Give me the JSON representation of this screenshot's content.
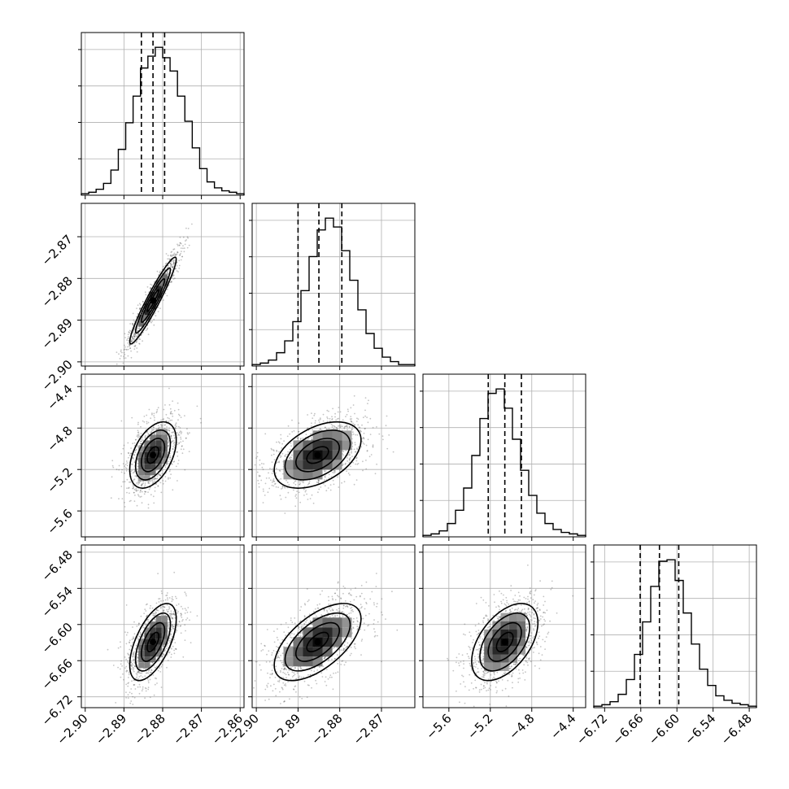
{
  "chart_data": {
    "type": "corner",
    "title": "",
    "parameters": [
      {
        "name": "",
        "axis_ticks": [
          "-2.90",
          "-2.89",
          "-2.88",
          "-2.87",
          "-2.86"
        ],
        "tick_values": [
          -2.9,
          -2.89,
          -2.88,
          -2.87,
          -2.86
        ],
        "range": [
          -2.901,
          -2.859
        ],
        "quantiles": [
          -2.8855,
          -2.8825,
          -2.8795
        ],
        "peak": -2.8825,
        "sigma": 0.003
      },
      {
        "name": "",
        "axis_ticks": [
          "-2.90",
          "-2.89",
          "-2.88",
          "-2.87"
        ],
        "tick_values": [
          -2.9,
          -2.89,
          -2.88,
          -2.87
        ],
        "range": [
          -2.901,
          -2.862
        ],
        "quantiles": [
          -2.89,
          -2.885,
          -2.8795
        ],
        "peak": -2.8853,
        "sigma": 0.0052
      },
      {
        "name": "",
        "axis_ticks": [
          "-5.6",
          "-5.2",
          "-4.8",
          "-4.4"
        ],
        "tick_values": [
          -5.6,
          -5.2,
          -4.8,
          -4.4
        ],
        "range": [
          -5.85,
          -4.28
        ],
        "quantiles": [
          -5.22,
          -5.06,
          -4.9
        ],
        "peak": -5.06,
        "sigma": 0.16
      },
      {
        "name": "",
        "axis_ticks": [
          "-6.72",
          "-6.66",
          "-6.60",
          "-6.54",
          "-6.48"
        ],
        "tick_values": [
          -6.72,
          -6.66,
          -6.6,
          -6.54,
          -6.48
        ],
        "range": [
          -6.738,
          -6.468
        ],
        "quantiles": [
          -6.661,
          -6.629,
          -6.597
        ],
        "peak": -6.629,
        "sigma": 0.032
      }
    ],
    "correlations": [
      [
        1,
        0.95,
        0.45,
        0.6
      ],
      [
        0.95,
        1,
        0.45,
        0.6
      ],
      [
        0.45,
        0.45,
        1,
        0.5
      ],
      [
        0.6,
        0.6,
        0.5,
        1
      ]
    ],
    "histograms": [
      [
        0.01,
        0.02,
        0.04,
        0.08,
        0.17,
        0.31,
        0.49,
        0.67,
        0.86,
        0.94,
        1.0,
        0.93,
        0.84,
        0.67,
        0.5,
        0.32,
        0.18,
        0.09,
        0.05,
        0.03,
        0.02,
        0.01
      ],
      [
        0.01,
        0.02,
        0.04,
        0.09,
        0.17,
        0.3,
        0.51,
        0.74,
        0.92,
        1.0,
        0.94,
        0.78,
        0.58,
        0.38,
        0.22,
        0.12,
        0.06,
        0.03,
        0.01,
        0.01
      ],
      [
        0.01,
        0.02,
        0.04,
        0.09,
        0.18,
        0.33,
        0.55,
        0.8,
        0.97,
        1.0,
        0.87,
        0.66,
        0.45,
        0.28,
        0.16,
        0.09,
        0.05,
        0.03,
        0.02,
        0.01
      ],
      [
        0.01,
        0.02,
        0.04,
        0.09,
        0.19,
        0.36,
        0.58,
        0.82,
        0.99,
        1.0,
        0.86,
        0.64,
        0.43,
        0.26,
        0.15,
        0.08,
        0.05,
        0.03,
        0.02,
        0.01
      ]
    ],
    "contour_levels_sigma": [
      0.5,
      1.0,
      1.5,
      2.0
    ],
    "grid": true,
    "quantile_lines": "dashed"
  }
}
